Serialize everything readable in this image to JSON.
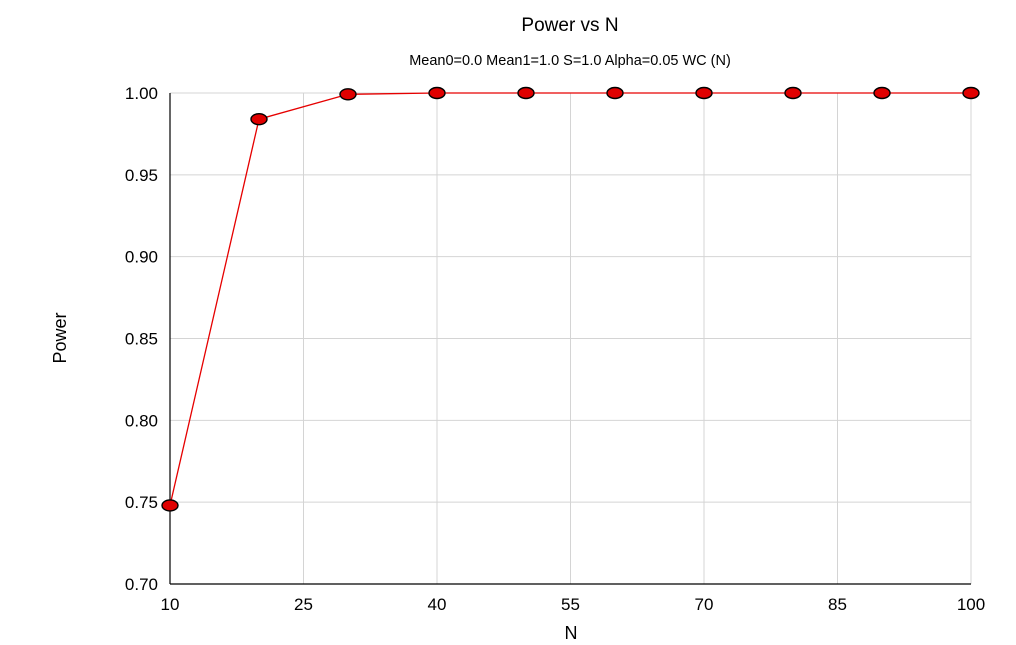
{
  "chart_data": {
    "type": "line",
    "title": "Power vs N",
    "subtitle": "Mean0=0.0 Mean1=1.0 S=1.0 Alpha=0.05 WC (N)",
    "xlabel": "N",
    "ylabel": "Power",
    "xlim": [
      10,
      100
    ],
    "ylim": [
      0.7,
      1.0
    ],
    "x_ticks": [
      "10",
      "25",
      "40",
      "55",
      "70",
      "85",
      "100"
    ],
    "y_ticks": [
      "0.70",
      "0.75",
      "0.80",
      "0.85",
      "0.90",
      "0.95",
      "1.00"
    ],
    "grid": true,
    "series": [
      {
        "x": [
          10,
          20,
          30,
          40,
          50,
          60,
          70,
          80,
          90,
          100
        ],
        "values": [
          0.748,
          0.984,
          0.9992,
          1.0,
          1.0,
          1.0,
          1.0,
          1.0,
          1.0,
          1.0
        ],
        "color": "#e60000",
        "marker_fill": "#e00000",
        "marker_edge": "#000000"
      }
    ]
  }
}
